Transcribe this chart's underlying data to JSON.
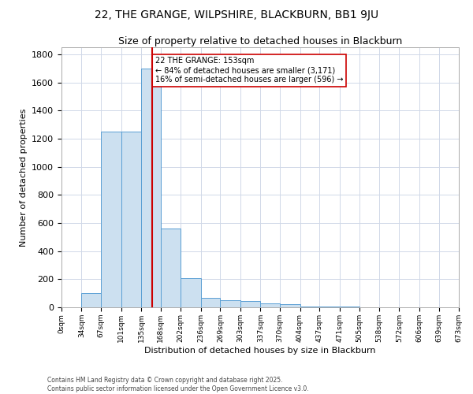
{
  "title": "22, THE GRANGE, WILPSHIRE, BLACKBURN, BB1 9JU",
  "subtitle": "Size of property relative to detached houses in Blackburn",
  "xlabel": "Distribution of detached houses by size in Blackburn",
  "ylabel": "Number of detached properties",
  "bin_edges": [
    0,
    34,
    67,
    101,
    135,
    168,
    202,
    236,
    269,
    303,
    337,
    370,
    404,
    437,
    471,
    505,
    538,
    572,
    606,
    639,
    673
  ],
  "bar_heights": [
    0,
    100,
    1250,
    1250,
    1700,
    560,
    210,
    70,
    50,
    45,
    30,
    25,
    5,
    4,
    3,
    2,
    1,
    0,
    0,
    0
  ],
  "bar_color": "#cce0f0",
  "bar_edgecolor": "#5a9fd4",
  "vline_x": 153,
  "vline_color": "#cc0000",
  "ylim": [
    0,
    1850
  ],
  "yticks": [
    0,
    200,
    400,
    600,
    800,
    1000,
    1200,
    1400,
    1600,
    1800
  ],
  "annotation_text": "22 THE GRANGE: 153sqm\n← 84% of detached houses are smaller (3,171)\n16% of semi-detached houses are larger (596) →",
  "bg_color": "#ffffff",
  "grid_color": "#d0d8e8",
  "footer_line1": "Contains HM Land Registry data © Crown copyright and database right 2025.",
  "footer_line2": "Contains public sector information licensed under the Open Government Licence v3.0."
}
